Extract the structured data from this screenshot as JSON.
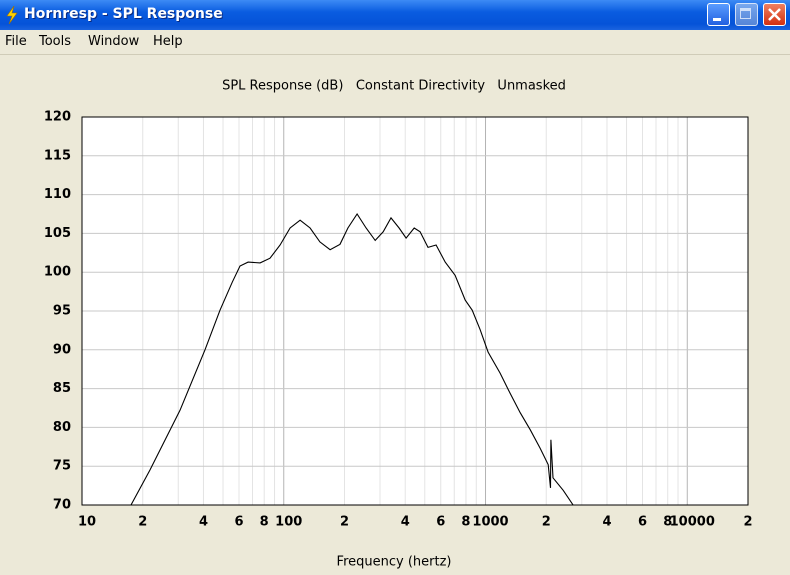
{
  "window": {
    "title": "Hornresp - SPL Response",
    "menu": [
      "File",
      "Tools",
      "Window",
      "Help"
    ]
  },
  "chart_data": {
    "type": "line",
    "title": "SPL Response (dB)   Constant Directivity   Unmasked",
    "xlabel": "Frequency (hertz)",
    "xscale": "log",
    "grid": true,
    "xlim": [
      10,
      20000
    ],
    "ylim": [
      70,
      120
    ],
    "xticks": [
      10,
      {
        "value": 20,
        "label": "2"
      },
      {
        "value": 40,
        "label": "4"
      },
      {
        "value": 60,
        "label": "6"
      },
      {
        "value": 80,
        "label": "8"
      },
      100,
      {
        "value": 200,
        "label": "2"
      },
      {
        "value": 400,
        "label": "4"
      },
      {
        "value": 600,
        "label": "6"
      },
      {
        "value": 800,
        "label": "8"
      },
      1000,
      {
        "value": 2000,
        "label": "2"
      },
      {
        "value": 4000,
        "label": "4"
      },
      {
        "value": 6000,
        "label": "6"
      },
      {
        "value": 8000,
        "label": "8"
      },
      10000,
      {
        "value": 20000,
        "label": "2"
      }
    ],
    "xminor": [
      30,
      50,
      70,
      90,
      300,
      500,
      700,
      900,
      3000,
      5000,
      7000,
      9000
    ],
    "yticks": [
      70,
      75,
      80,
      85,
      90,
      95,
      100,
      105,
      110,
      115,
      120
    ],
    "series": [
      {
        "color": "#000000",
        "x": [
          17.5,
          21.7,
          30.6,
          40.7,
          48.3,
          55.5,
          60.7,
          66.6,
          76.3,
          85.5,
          95.9,
          107.5,
          120.5,
          135,
          151,
          169.7,
          190,
          208,
          231,
          256,
          284,
          311,
          340,
          373,
          404,
          443,
          474,
          519,
          569,
          631,
          707,
          793,
          859,
          940,
          1030,
          1181,
          1324,
          1485,
          1665,
          1867,
          2044,
          2100,
          2110,
          2160,
          2427,
          2718
        ],
        "values": [
          70,
          74.5,
          82.2,
          90,
          95.1,
          98.7,
          100.8,
          101.3,
          101.2,
          101.8,
          103.5,
          105.7,
          106.7,
          105.7,
          103.9,
          102.9,
          103.6,
          105.7,
          107.5,
          105.7,
          104.1,
          105.2,
          107.0,
          105.7,
          104.4,
          105.7,
          105.2,
          103.2,
          103.5,
          101.3,
          99.6,
          96.4,
          95.1,
          92.6,
          89.7,
          87.0,
          84.4,
          81.9,
          79.7,
          77.3,
          75.2,
          72.2,
          78.4,
          73.5,
          71.9,
          70
        ]
      }
    ]
  }
}
